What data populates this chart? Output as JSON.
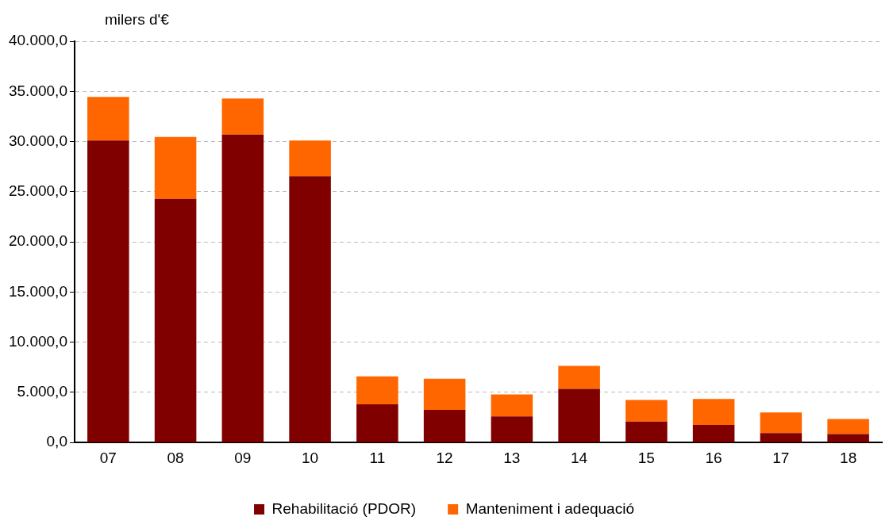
{
  "chart_data": {
    "type": "bar",
    "stacked": true,
    "ylabel": "milers d'€",
    "categories": [
      "07",
      "08",
      "09",
      "10",
      "11",
      "12",
      "13",
      "14",
      "15",
      "16",
      "17",
      "18"
    ],
    "series": [
      {
        "name": "Rehabilitació (PDOR)",
        "color": "#800000",
        "values": [
          30100,
          24300,
          30700,
          26550,
          3800,
          3250,
          2600,
          5350,
          2100,
          1750,
          950,
          850
        ]
      },
      {
        "name": "Manteniment i adequació",
        "color": "#ff6600",
        "values": [
          4350,
          6150,
          3600,
          3550,
          2800,
          3100,
          2200,
          2300,
          2150,
          2600,
          2050,
          1500
        ]
      }
    ],
    "ylim": [
      0,
      40000
    ],
    "yticks": [
      {
        "value": 0,
        "label": "0,0"
      },
      {
        "value": 5000,
        "label": "5.000,0"
      },
      {
        "value": 10000,
        "label": "10.000,0"
      },
      {
        "value": 15000,
        "label": "15.000,0"
      },
      {
        "value": 20000,
        "label": "20.000,0"
      },
      {
        "value": 25000,
        "label": "25.000,0"
      },
      {
        "value": 30000,
        "label": "30.000,0"
      },
      {
        "value": 35000,
        "label": "35.000,0"
      },
      {
        "value": 40000,
        "label": "40.000,0"
      }
    ],
    "grid": "y",
    "legend": "bottom"
  }
}
